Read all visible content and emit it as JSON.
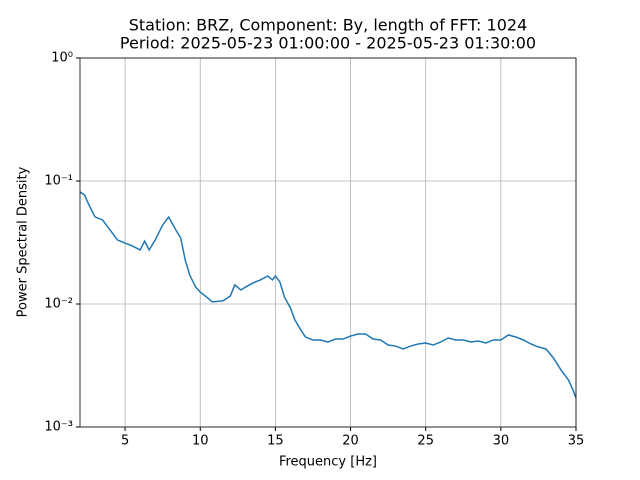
{
  "chart_data": {
    "type": "line",
    "title": [
      "Station: BRZ, Component: By, length of FFT: 1024",
      "Period: 2025-05-23 01:00:00 - 2025-05-23 01:30:00"
    ],
    "xlabel": "Frequency [Hz]",
    "ylabel": "Power Spectral Density",
    "xlim": [
      2,
      35
    ],
    "xticks": [
      5,
      10,
      15,
      20,
      25,
      30,
      35
    ],
    "ylim": [
      0.001,
      1
    ],
    "yscale": "log",
    "yticks": [
      {
        "value": 0.001,
        "label": "10⁻³"
      },
      {
        "value": 0.01,
        "label": "10⁻²"
      },
      {
        "value": 0.1,
        "label": "10⁻¹"
      },
      {
        "value": 1,
        "label": "10⁰"
      }
    ],
    "grid": true,
    "x": [
      2,
      2.3,
      2.6,
      3,
      3.5,
      4,
      4.5,
      5,
      5.5,
      6,
      6.3,
      6.6,
      7,
      7.5,
      7.9,
      8.3,
      8.7,
      9,
      9.3,
      9.7,
      10,
      10.5,
      10.8,
      11.5,
      12,
      12.3,
      12.7,
      13,
      13.5,
      14,
      14.5,
      14.8,
      15,
      15.3,
      15.6,
      16,
      16.3,
      16.7,
      17,
      17.5,
      18,
      18.5,
      19,
      19.5,
      20,
      20.5,
      21,
      21.5,
      22,
      22.5,
      23,
      23.5,
      24,
      24.5,
      25,
      25.5,
      26,
      26.5,
      27,
      27.5,
      28,
      28.5,
      29,
      29.5,
      30,
      30.5,
      31,
      31.5,
      32,
      32.5,
      33,
      33.5,
      34,
      34.5,
      34.8,
      35
    ],
    "series": [
      {
        "name": "PSD",
        "color": "#1f77b4",
        "values": [
          0.0814,
          0.0769,
          0.0638,
          0.051,
          0.0482,
          0.04,
          0.0331,
          0.0313,
          0.0296,
          0.0275,
          0.0325,
          0.0275,
          0.0331,
          0.0439,
          0.051,
          0.0415,
          0.0344,
          0.0228,
          0.0172,
          0.0137,
          0.0125,
          0.0112,
          0.0104,
          0.0106,
          0.0116,
          0.0143,
          0.013,
          0.0137,
          0.0148,
          0.0157,
          0.0169,
          0.0157,
          0.0169,
          0.0151,
          0.0114,
          0.00928,
          0.00741,
          0.00614,
          0.00539,
          0.0051,
          0.0051,
          0.00491,
          0.00519,
          0.00519,
          0.00549,
          0.0057,
          0.0057,
          0.00519,
          0.0051,
          0.00464,
          0.00455,
          0.00431,
          0.00455,
          0.00473,
          0.00482,
          0.00464,
          0.00491,
          0.00529,
          0.0051,
          0.0051,
          0.00491,
          0.005,
          0.00482,
          0.0051,
          0.0051,
          0.0056,
          0.00539,
          0.0051,
          0.00473,
          0.00447,
          0.00431,
          0.00364,
          0.00291,
          0.00241,
          0.002,
          0.00172
        ]
      }
    ]
  }
}
